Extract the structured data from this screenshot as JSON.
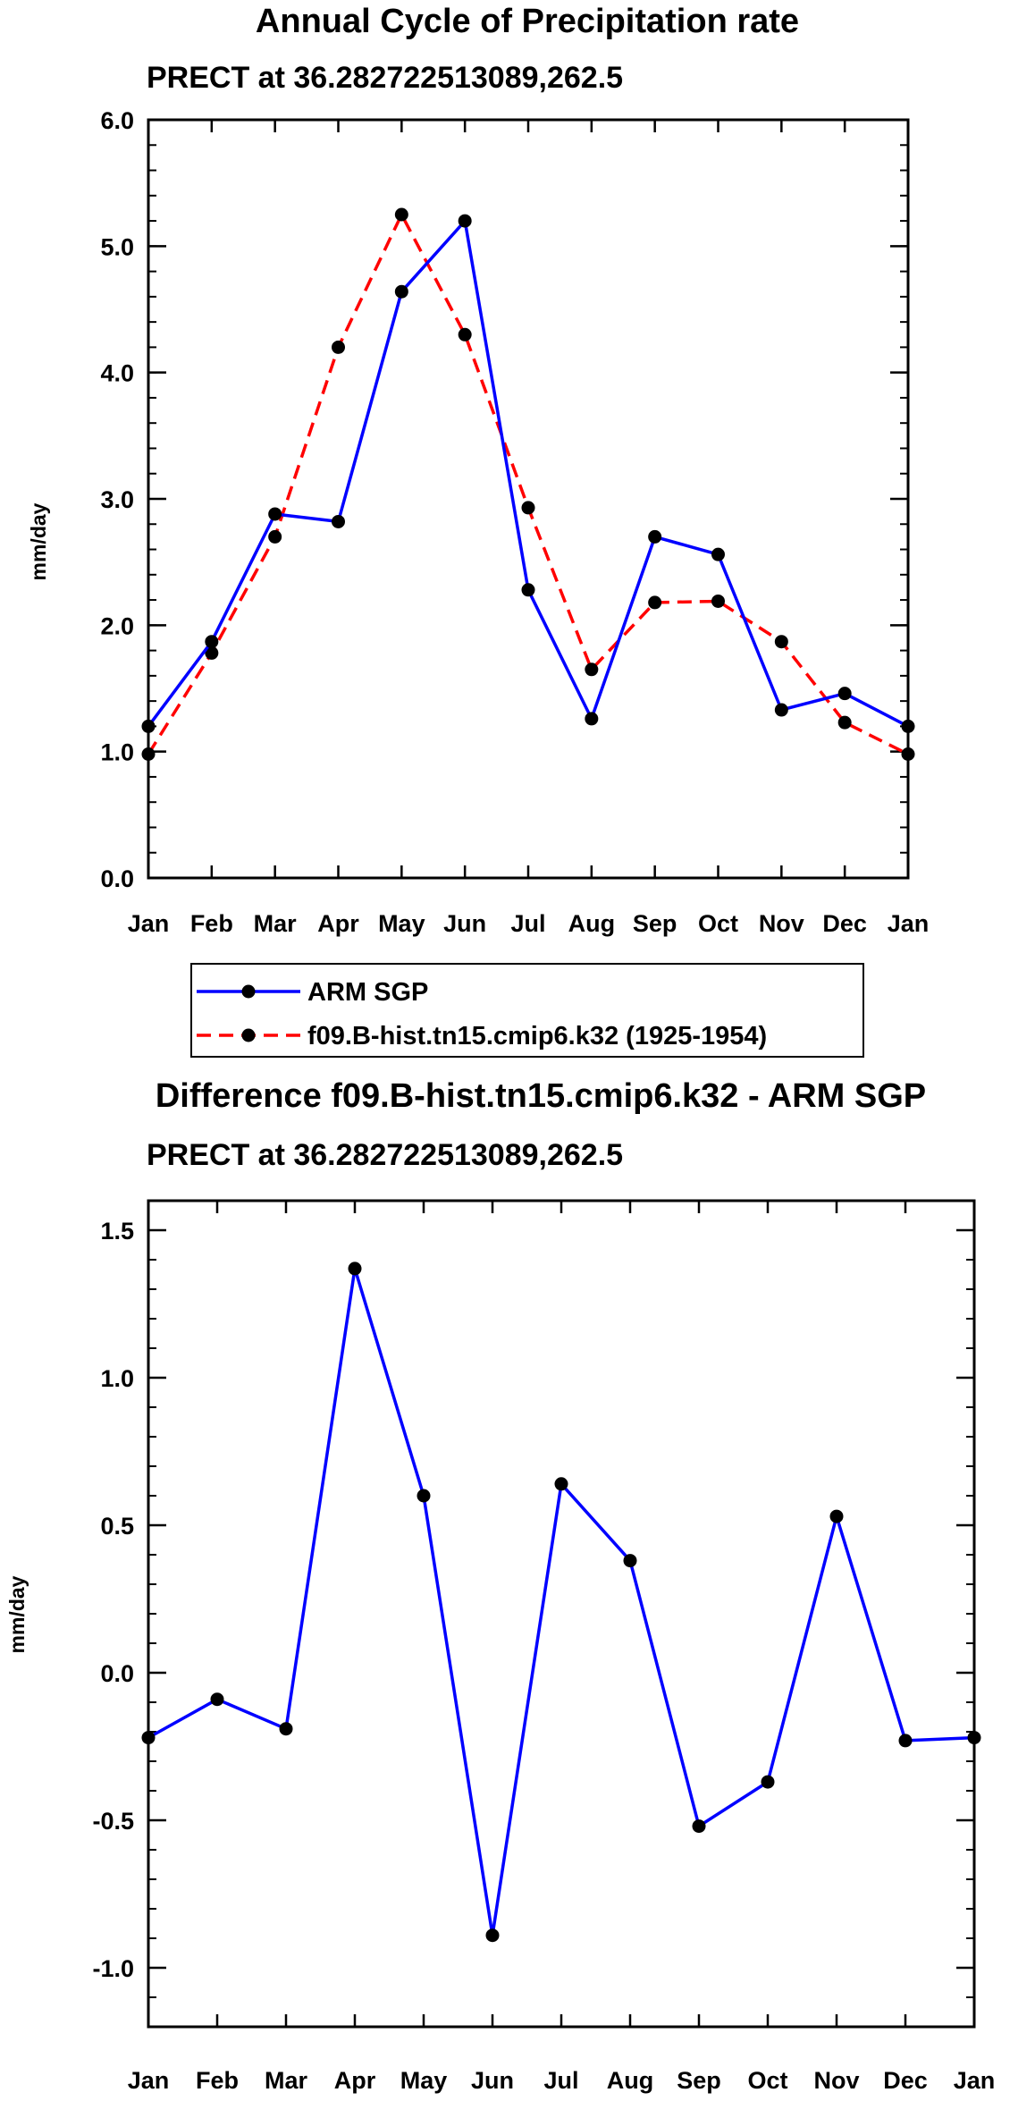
{
  "chart_data": [
    {
      "type": "line",
      "title": "Annual Cycle of Precipitation rate",
      "subtitle": "PRECT at 36.282722513089,262.5",
      "ylabel": "mm/day",
      "xlabel": "",
      "categories": [
        "Jan",
        "Feb",
        "Mar",
        "Apr",
        "May",
        "Jun",
        "Jul",
        "Aug",
        "Sep",
        "Oct",
        "Nov",
        "Dec",
        "Jan"
      ],
      "ylim": [
        0.0,
        6.0
      ],
      "yticks": [
        0.0,
        1.0,
        2.0,
        3.0,
        4.0,
        5.0,
        6.0
      ],
      "yticklabels": [
        "0.0",
        "1.0",
        "2.0",
        "3.0",
        "4.0",
        "5.0",
        "6.0"
      ],
      "series": [
        {
          "name": "ARM SGP",
          "color": "#0000ff",
          "style": "solid",
          "values": [
            1.2,
            1.87,
            2.88,
            2.82,
            4.64,
            5.2,
            2.28,
            1.26,
            2.7,
            2.56,
            1.33,
            1.46,
            1.2
          ]
        },
        {
          "name": "f09.B-hist.tn15.cmip6.k32 (1925-1954)",
          "color": "#ff0000",
          "style": "dashed",
          "values": [
            0.98,
            1.78,
            2.7,
            4.2,
            5.25,
            4.3,
            2.93,
            1.65,
            2.18,
            2.19,
            1.87,
            1.23,
            0.98
          ]
        }
      ],
      "legend": {
        "placement": "bottom",
        "entries": [
          "ARM SGP",
          "f09.B-hist.tn15.cmip6.k32 (1925-1954)"
        ]
      }
    },
    {
      "type": "line",
      "title": "Difference f09.B-hist.tn15.cmip6.k32 - ARM SGP",
      "subtitle": "PRECT at 36.282722513089,262.5",
      "ylabel": "mm/day",
      "xlabel": "",
      "categories": [
        "Jan",
        "Feb",
        "Mar",
        "Apr",
        "May",
        "Jun",
        "Jul",
        "Aug",
        "Sep",
        "Oct",
        "Nov",
        "Dec",
        "Jan"
      ],
      "ylim": [
        -1.2,
        1.6
      ],
      "yticks": [
        -1.0,
        -0.5,
        0.0,
        0.5,
        1.0,
        1.5
      ],
      "yticklabels": [
        "-1.0",
        "-0.5",
        "0.0",
        "0.5",
        "1.0",
        "1.5"
      ],
      "series": [
        {
          "name": "Difference",
          "color": "#0000ff",
          "style": "solid",
          "values": [
            -0.22,
            -0.09,
            -0.19,
            1.37,
            0.6,
            -0.89,
            0.64,
            0.38,
            -0.52,
            -0.37,
            0.53,
            -0.23,
            -0.22
          ]
        }
      ]
    }
  ]
}
